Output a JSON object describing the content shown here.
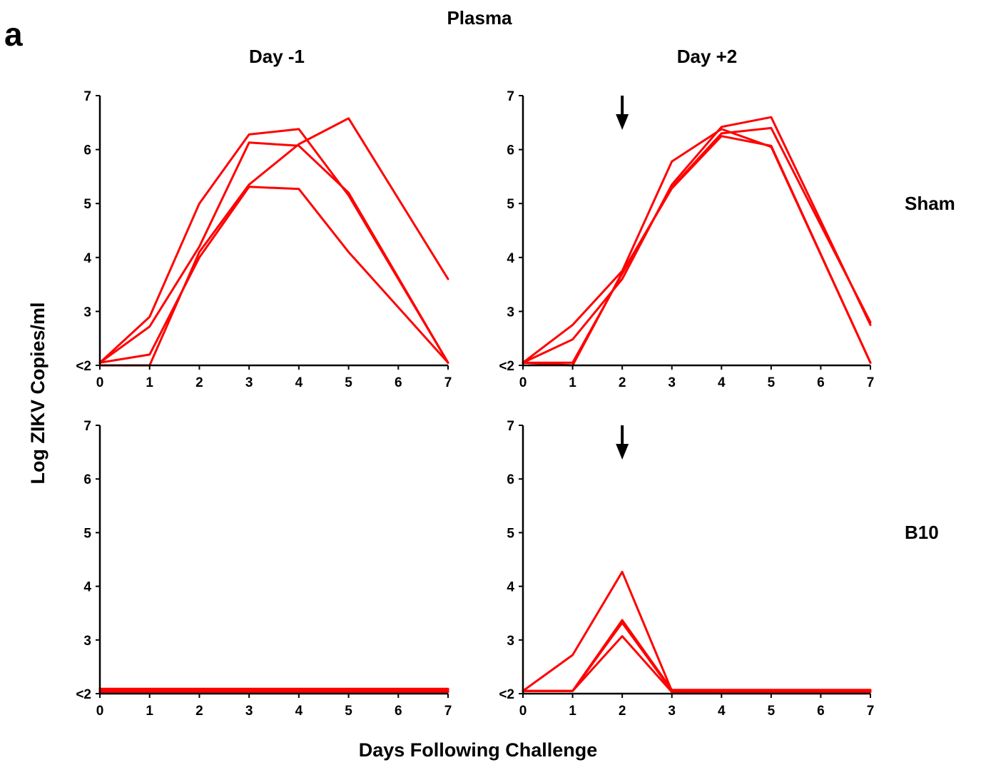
{
  "figure": {
    "panel_letter": "a",
    "title": "Plasma",
    "column_titles": [
      "Day -1",
      "Day +2"
    ],
    "row_labels": [
      "Sham",
      "B10"
    ],
    "ylabel": "Log ZIKV Copies/ml",
    "xlabel": "Days Following Challenge",
    "line_color": "#ff0000"
  },
  "chart_data": [
    {
      "type": "line",
      "row": "Sham",
      "column": "Day -1",
      "x": [
        0,
        1,
        2,
        3,
        4,
        5,
        6,
        7
      ],
      "xlim": [
        0,
        7
      ],
      "ylim": [
        2,
        7
      ],
      "y_tick_labels": [
        "<2",
        "3",
        "4",
        "5",
        "6",
        "7"
      ],
      "x_tick_labels": [
        "0",
        "1",
        "2",
        "3",
        "4",
        "5",
        "6",
        "7"
      ],
      "arrow_at_day": null,
      "series": [
        {
          "values": [
            2.05,
            2.9,
            5.0,
            6.28,
            6.38,
            5.15,
            null,
            2.05
          ]
        },
        {
          "values": [
            2.05,
            2.72,
            4.2,
            6.13,
            6.07,
            5.2,
            null,
            2.05
          ]
        },
        {
          "values": [
            2.05,
            2.2,
            4.0,
            5.31,
            5.27,
            4.1,
            null,
            2.05
          ]
        },
        {
          "values": [
            2.0,
            2.0,
            4.1,
            5.35,
            6.1,
            6.58,
            null,
            3.6
          ]
        }
      ]
    },
    {
      "type": "line",
      "row": "Sham",
      "column": "Day +2",
      "x": [
        0,
        1,
        2,
        3,
        4,
        5,
        6,
        7
      ],
      "xlim": [
        0,
        7
      ],
      "ylim": [
        2,
        7
      ],
      "y_tick_labels": [
        "<2",
        "3",
        "4",
        "5",
        "6",
        "7"
      ],
      "x_tick_labels": [
        "0",
        "1",
        "2",
        "3",
        "4",
        "5",
        "6",
        "7"
      ],
      "arrow_at_day": 2,
      "series": [
        {
          "values": [
            2.05,
            2.75,
            3.75,
            5.78,
            6.38,
            6.05,
            null,
            2.05
          ]
        },
        {
          "values": [
            2.05,
            2.48,
            3.6,
            5.35,
            6.42,
            6.6,
            null,
            2.75
          ]
        },
        {
          "values": [
            2.05,
            2.05,
            3.7,
            5.3,
            6.3,
            6.4,
            null,
            2.8
          ]
        },
        {
          "values": [
            2.05,
            2.0,
            3.72,
            5.28,
            6.25,
            6.07,
            null,
            2.05
          ]
        }
      ]
    },
    {
      "type": "line",
      "row": "B10",
      "column": "Day -1",
      "x": [
        0,
        1,
        2,
        3,
        4,
        5,
        6,
        7
      ],
      "xlim": [
        0,
        7
      ],
      "ylim": [
        2,
        7
      ],
      "y_tick_labels": [
        "<2",
        "3",
        "4",
        "5",
        "6",
        "7"
      ],
      "x_tick_labels": [
        "0",
        "1",
        "2",
        "3",
        "4",
        "5",
        "6",
        "7"
      ],
      "arrow_at_day": null,
      "series": [
        {
          "values": [
            2.05,
            2.05,
            2.05,
            2.05,
            2.05,
            2.05,
            2.05,
            2.05
          ]
        },
        {
          "values": [
            2.07,
            2.07,
            2.07,
            2.07,
            2.07,
            2.07,
            2.07,
            2.07
          ]
        },
        {
          "values": [
            2.03,
            2.03,
            2.03,
            2.03,
            2.03,
            2.03,
            2.03,
            2.03
          ]
        },
        {
          "values": [
            2.09,
            2.09,
            2.09,
            2.09,
            2.09,
            2.09,
            2.09,
            2.09
          ]
        }
      ]
    },
    {
      "type": "line",
      "row": "B10",
      "column": "Day +2",
      "x": [
        0,
        1,
        2,
        3,
        4,
        5,
        6,
        7
      ],
      "xlim": [
        0,
        7
      ],
      "ylim": [
        2,
        7
      ],
      "y_tick_labels": [
        "<2",
        "3",
        "4",
        "5",
        "6",
        "7"
      ],
      "x_tick_labels": [
        "0",
        "1",
        "2",
        "3",
        "4",
        "5",
        "6",
        "7"
      ],
      "arrow_at_day": 2,
      "series": [
        {
          "values": [
            2.05,
            2.72,
            4.27,
            2.05,
            2.05,
            2.05,
            2.05,
            2.05
          ]
        },
        {
          "values": [
            2.05,
            2.05,
            3.37,
            2.07,
            2.07,
            2.07,
            2.07,
            2.07
          ]
        },
        {
          "values": [
            2.05,
            2.05,
            3.32,
            2.05,
            2.05,
            2.05,
            2.05,
            2.05
          ]
        },
        {
          "values": [
            2.05,
            2.05,
            3.07,
            2.03,
            2.03,
            2.03,
            2.03,
            2.03
          ]
        }
      ]
    }
  ]
}
